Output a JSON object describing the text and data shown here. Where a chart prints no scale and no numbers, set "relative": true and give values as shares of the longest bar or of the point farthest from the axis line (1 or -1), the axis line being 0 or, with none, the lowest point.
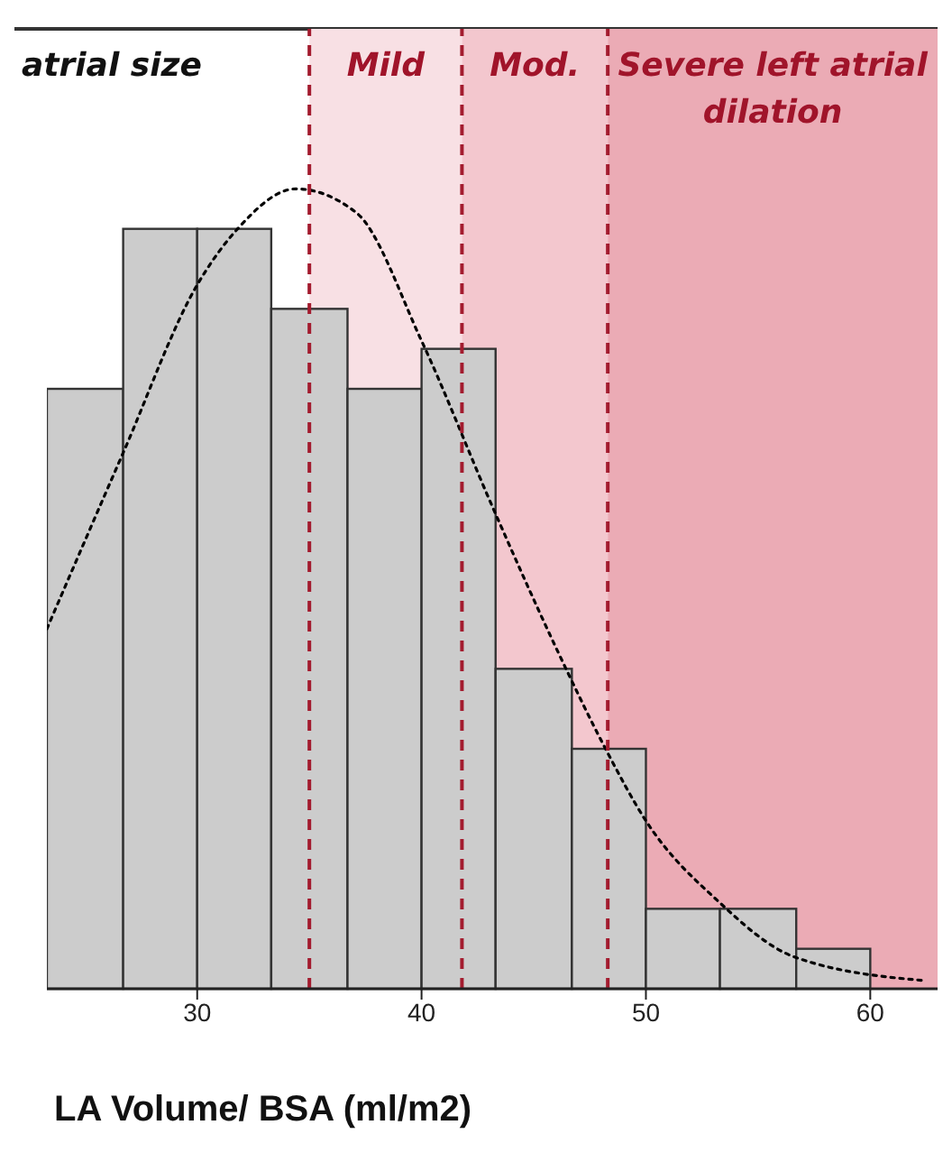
{
  "chart_data": {
    "type": "histogram",
    "title": "atrial size",
    "xlabel": "LA Volume/ BSA (ml/m2)",
    "relative": true,
    "bins": [
      23.3,
      26.7,
      30,
      33.3,
      36.7,
      40,
      43.3,
      46.7,
      50,
      53.3,
      56.7,
      60
    ],
    "series": [
      {
        "type": "histogram",
        "color": "#cccccc",
        "values": [
          0.75,
          0.95,
          0.95,
          0.85,
          0.75,
          0.8,
          0.4,
          0.3,
          0.1,
          0.1,
          0.05
        ]
      },
      {
        "type": "line",
        "color": "#000000",
        "line_style": "dotted",
        "marker": "none",
        "x": [
          23.3,
          26.7,
          30,
          31.8,
          34.4,
          37.1,
          40,
          43.2,
          46.1,
          48.2,
          50,
          53.2,
          56.6,
          62.5
        ],
        "values": [
          0.45,
          0.67,
          0.88,
          0.95,
          1,
          0.97,
          0.81,
          0.6,
          0.42,
          0.3,
          0.21,
          0.11,
          0.04,
          0.01
        ]
      }
    ],
    "xlim": [
      23.3,
      63
    ],
    "xticks": [
      30,
      40,
      50,
      60
    ],
    "bands": [
      {
        "axis": "x",
        "from": 35,
        "to": 41.8,
        "label": "Mild",
        "color": "#f8e0e4"
      },
      {
        "axis": "x",
        "from": 41.8,
        "to": 48.3,
        "label": "Mod.",
        "color": "#f3c7ce"
      },
      {
        "axis": "x",
        "from": 48.3,
        "to": 63,
        "label": "Severe left atrial dilation",
        "color": "#ebabb5"
      }
    ],
    "ref_lines": [
      {
        "axis": "x",
        "value": 35,
        "color": "#a31b2e",
        "line_style": "dashed"
      },
      {
        "axis": "x",
        "value": 41.8,
        "color": "#a31b2e",
        "line_style": "dashed"
      },
      {
        "axis": "x",
        "value": 48.3,
        "color": "#a31b2e",
        "line_style": "dashed"
      }
    ]
  }
}
